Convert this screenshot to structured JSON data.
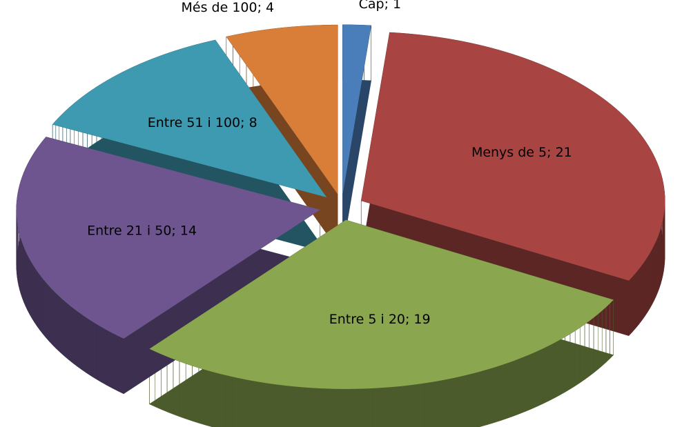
{
  "chart_data": {
    "type": "pie3d",
    "values": [
      1,
      21,
      19,
      14,
      8,
      4
    ],
    "value_labels": [
      "Cap; 1",
      "Menys de 5; 21",
      "Entre 5 i 20; 19",
      "Entre 21 i 50; 14",
      "Entre 51 i 100; 8",
      "Més de 100; 4"
    ],
    "colors": [
      "#4a7ebb",
      "#a84542",
      "#8aa64f",
      "#6f558f",
      "#3d9ab0",
      "#d97e38"
    ]
  }
}
